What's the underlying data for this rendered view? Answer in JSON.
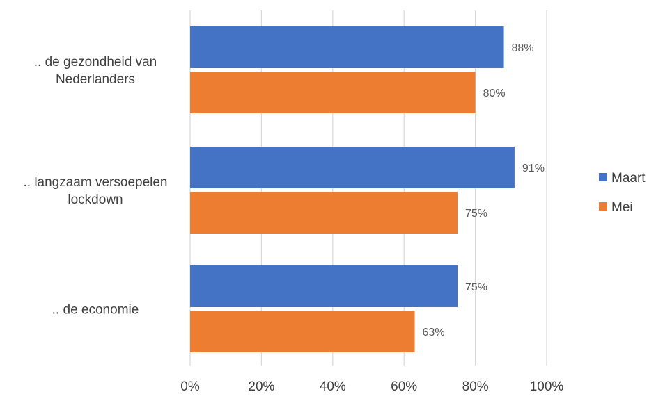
{
  "chart_data": {
    "type": "bar",
    "orientation": "horizontal",
    "categories": [
      [
        ".. de gezondheid van",
        "Nederlanders"
      ],
      [
        ".. langzaam versoepelen",
        "lockdown"
      ],
      [
        ".. de economie"
      ]
    ],
    "series": [
      {
        "name": "Maart",
        "color": "#4472C4",
        "values": [
          88,
          91,
          75
        ],
        "labels": [
          "88%",
          "91%",
          "75%"
        ]
      },
      {
        "name": "Mei",
        "color": "#ED7D31",
        "values": [
          80,
          75,
          63
        ],
        "labels": [
          "80%",
          "75%",
          "63%"
        ]
      }
    ],
    "xlim": [
      0,
      100
    ],
    "xticks": [
      0,
      20,
      40,
      60,
      80,
      100
    ],
    "xtick_labels": [
      "0%",
      "20%",
      "40%",
      "60%",
      "80%",
      "100%"
    ],
    "grid": true,
    "legend_position": "right"
  }
}
